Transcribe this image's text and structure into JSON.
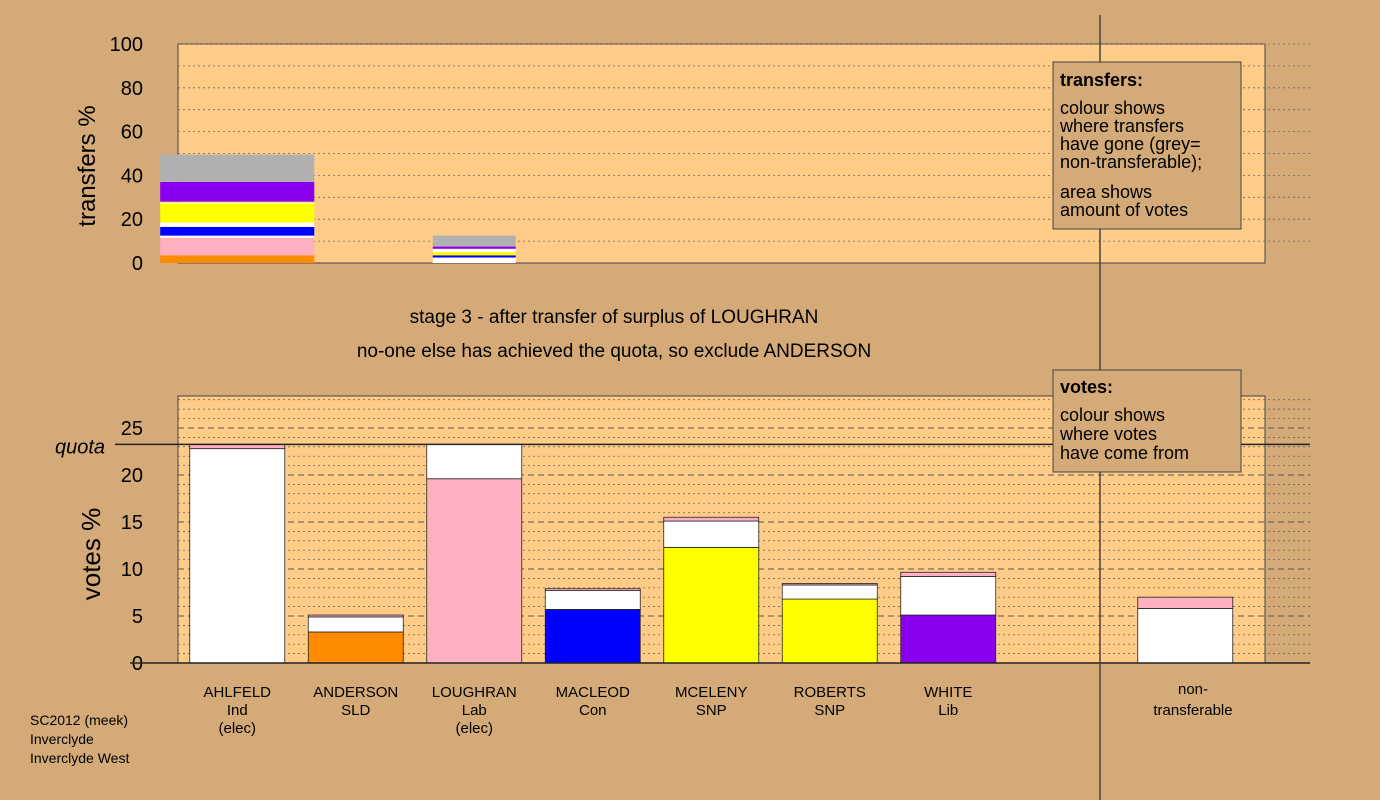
{
  "colors": {
    "background": "#d4aa78",
    "plot_bg": "#ffcc88",
    "AHLFELD": "#ffffff",
    "ANDERSON": "#ff8c00",
    "LOUGHRAN": "#ffb0c0",
    "MACLEOD": "#0000ff",
    "MCELENY": "#ffff00",
    "ROBERTS": "#ffff00",
    "WHITE": "#8800ee",
    "non_transferable": "#b0b0b0"
  },
  "stage_info": {
    "line1": "stage 3 - after transfer of surplus of LOUGHRAN",
    "line2": "no-one else has achieved the quota, so exclude ANDERSON"
  },
  "footer": {
    "line1": "SC2012 (meek)",
    "line2": "Inverclyde",
    "line3": "Inverclyde West"
  },
  "legend_transfers": {
    "title": "transfers:",
    "lines": [
      "colour shows",
      "where transfers",
      "have gone (grey=",
      "non-transferable);",
      "area shows",
      "amount of votes"
    ]
  },
  "legend_votes": {
    "title": "votes:",
    "lines": [
      "colour shows",
      "where votes",
      "have come from"
    ]
  },
  "candidates": [
    {
      "name": "AHLFELD",
      "party": "Ind",
      "status": "(elec)"
    },
    {
      "name": "ANDERSON",
      "party": "SLD",
      "status": ""
    },
    {
      "name": "LOUGHRAN",
      "party": "Lab",
      "status": "(elec)"
    },
    {
      "name": "MACLEOD",
      "party": "Con",
      "status": ""
    },
    {
      "name": "MCELENY",
      "party": "SNP",
      "status": ""
    },
    {
      "name": "ROBERTS",
      "party": "SNP",
      "status": ""
    },
    {
      "name": "WHITE",
      "party": "Lib",
      "status": ""
    }
  ],
  "nontransferable_label": {
    "line1": "non-",
    "line2": "transferable"
  },
  "chart_data": [
    {
      "type": "bar",
      "stacked": true,
      "ylabel": "transfers %",
      "ylim": [
        0,
        100
      ],
      "yticks": [
        0,
        20,
        40,
        60,
        80,
        100
      ],
      "bars": [
        {
          "position": 0.5,
          "width": 1.3,
          "segments": [
            {
              "to": "ANDERSON",
              "value": 3.5
            },
            {
              "to": "LOUGHRAN",
              "value": 8
            },
            {
              "to": "AHLFELD",
              "value": 1
            },
            {
              "to": "MACLEOD",
              "value": 4
            },
            {
              "to": "AHLFELD",
              "value": 2
            },
            {
              "to": "MCELENY",
              "value": 8.5
            },
            {
              "to": "AHLFELD",
              "value": 0.5
            },
            {
              "to": "ROBERTS",
              "value": 0.5
            },
            {
              "to": "WHITE",
              "value": 9
            },
            {
              "to": "non-transferable",
              "value": 12.5
            }
          ]
        },
        {
          "position": 2.5,
          "width": 0.7,
          "segments": [
            {
              "to": "AHLFELD",
              "value": 2.5
            },
            {
              "to": "MACLEOD",
              "value": 1
            },
            {
              "to": "MCELENY",
              "value": 1.5
            },
            {
              "to": "AHLFELD",
              "value": 1.5
            },
            {
              "to": "WHITE",
              "value": 1
            },
            {
              "to": "non-transferable",
              "value": 5
            }
          ]
        }
      ]
    },
    {
      "type": "bar",
      "stacked": true,
      "ylabel": "votes %",
      "ylim": [
        0,
        28.4
      ],
      "yticks": [
        0,
        5,
        10,
        15,
        20,
        25
      ],
      "quota": 23.25,
      "quota_label": "quota",
      "categories": [
        "AHLFELD",
        "ANDERSON",
        "LOUGHRAN",
        "MACLEOD",
        "MCELENY",
        "ROBERTS",
        "WHITE",
        "non-transferable"
      ],
      "stacks": [
        {
          "category": "AHLFELD",
          "segments": [
            {
              "from": "AHLFELD",
              "value": 22.8
            },
            {
              "from": "LOUGHRAN",
              "value": 0.45
            }
          ]
        },
        {
          "category": "ANDERSON",
          "segments": [
            {
              "from": "ANDERSON",
              "value": 3.3
            },
            {
              "from": "AHLFELD",
              "value": 1.6
            },
            {
              "from": "LOUGHRAN",
              "value": 0.2
            }
          ]
        },
        {
          "category": "LOUGHRAN",
          "segments": [
            {
              "from": "LOUGHRAN",
              "value": 19.6
            },
            {
              "from": "AHLFELD",
              "value": 3.65
            }
          ]
        },
        {
          "category": "MACLEOD",
          "segments": [
            {
              "from": "MACLEOD",
              "value": 5.7
            },
            {
              "from": "AHLFELD",
              "value": 2.0
            },
            {
              "from": "LOUGHRAN",
              "value": 0.2
            }
          ]
        },
        {
          "category": "MCELENY",
          "segments": [
            {
              "from": "MCELENY",
              "value": 12.3
            },
            {
              "from": "AHLFELD",
              "value": 2.8
            },
            {
              "from": "LOUGHRAN",
              "value": 0.4
            }
          ]
        },
        {
          "category": "ROBERTS",
          "segments": [
            {
              "from": "ROBERTS",
              "value": 6.8
            },
            {
              "from": "AHLFELD",
              "value": 1.5
            },
            {
              "from": "LOUGHRAN",
              "value": 0.15
            }
          ]
        },
        {
          "category": "WHITE",
          "segments": [
            {
              "from": "WHITE",
              "value": 5.1
            },
            {
              "from": "AHLFELD",
              "value": 4.1
            },
            {
              "from": "LOUGHRAN",
              "value": 0.45
            }
          ]
        },
        {
          "category": "non-transferable",
          "segments": [
            {
              "from": "AHLFELD",
              "value": 5.8
            },
            {
              "from": "LOUGHRAN",
              "value": 1.2
            }
          ]
        }
      ]
    }
  ]
}
